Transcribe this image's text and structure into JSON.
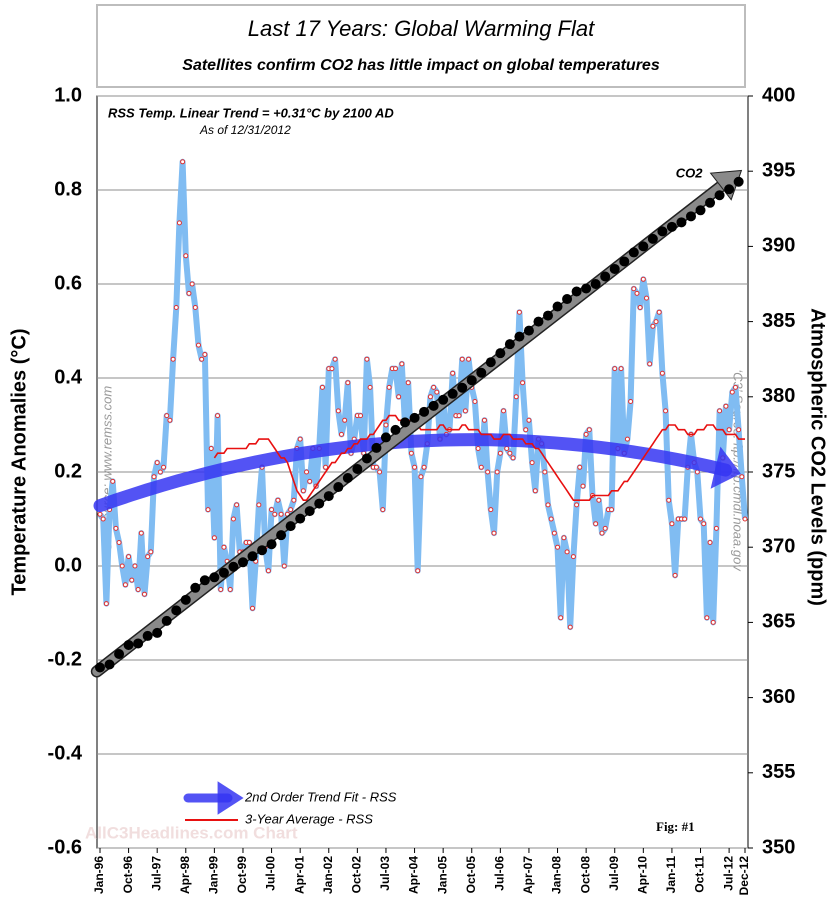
{
  "chart_data": {
    "type": "line",
    "title": "Last 17 Years: Global Warming Flat",
    "subtitle": "Satellites confirm CO2 has little impact on global temperatures",
    "ylabel": "Temperature Anomalies (°C)",
    "y2label": "Atmospheric CO2 Levels (ppm)",
    "note": "RSS Temp. Linear Trend = +0.31°C by 2100 AD",
    "as_of": "As of 12/31/2012",
    "source_left": "‘C3’ Source: www.remss.com",
    "source_right": "‘C3’ Source: ftp://ftp.cmdl.noaa.gov",
    "fig": "Fig: #1",
    "watermark": "AllC3Headlines.com Chart",
    "categories": [
      "Jan-96",
      null,
      null,
      null,
      null,
      null,
      null,
      null,
      null,
      "Oct-96",
      null,
      null,
      null,
      null,
      null,
      null,
      null,
      null,
      "Jul-97",
      null,
      null,
      null,
      null,
      null,
      null,
      null,
      null,
      "Apr-98",
      null,
      null,
      null,
      null,
      null,
      null,
      null,
      null,
      "Jan-99",
      null,
      null,
      null,
      null,
      null,
      null,
      null,
      null,
      "Oct-99",
      null,
      null,
      null,
      null,
      null,
      null,
      null,
      null,
      "Jul-00",
      null,
      null,
      null,
      null,
      null,
      null,
      null,
      null,
      "Apr-01",
      null,
      null,
      null,
      null,
      null,
      null,
      null,
      null,
      "Jan-02",
      null,
      null,
      null,
      null,
      null,
      null,
      null,
      null,
      "Oct-02",
      null,
      null,
      null,
      null,
      null,
      null,
      null,
      null,
      "Jul-03",
      null,
      null,
      null,
      null,
      null,
      null,
      null,
      null,
      "Apr-04",
      null,
      null,
      null,
      null,
      null,
      null,
      null,
      null,
      "Jan-05",
      null,
      null,
      null,
      null,
      null,
      null,
      null,
      null,
      "Oct-05",
      null,
      null,
      null,
      null,
      null,
      null,
      null,
      null,
      "Jul-06",
      null,
      null,
      null,
      null,
      null,
      null,
      null,
      null,
      "Apr-07",
      null,
      null,
      null,
      null,
      null,
      null,
      null,
      null,
      "Jan-08",
      null,
      null,
      null,
      null,
      null,
      null,
      null,
      null,
      "Oct-08",
      null,
      null,
      null,
      null,
      null,
      null,
      null,
      null,
      "Jul-09",
      null,
      null,
      null,
      null,
      null,
      null,
      null,
      null,
      "Apr-10",
      null,
      null,
      null,
      null,
      null,
      null,
      null,
      null,
      "Jan-11",
      null,
      null,
      null,
      null,
      null,
      null,
      null,
      null,
      "Oct-11",
      null,
      null,
      null,
      null,
      null,
      null,
      null,
      null,
      "Jul-12",
      null,
      null,
      null,
      null,
      "Dec-12"
    ],
    "series": [
      {
        "color": "#80bcf2",
        "marker_color": "#e03030",
        "values": [
          0.11,
          0.1,
          -0.08,
          0.12,
          0.18,
          0.08,
          0.05,
          0.0,
          -0.04,
          0.02,
          -0.03,
          0.0,
          -0.05,
          0.07,
          -0.06,
          0.02,
          0.03,
          0.19,
          0.22,
          0.2,
          0.21,
          0.32,
          0.31,
          0.44,
          0.55,
          0.73,
          0.86,
          0.66,
          0.58,
          0.6,
          0.55,
          0.47,
          0.44,
          0.45,
          0.12,
          0.25,
          0.06,
          0.32,
          -0.05,
          0.04,
          0.01,
          -0.05,
          0.1,
          0.13,
          0.03,
          0.03,
          0.05,
          0.05,
          -0.09,
          0.01,
          0.13,
          0.21,
          0.04,
          -0.01,
          0.12,
          0.11,
          0.14,
          0.11,
          0.0,
          0.11,
          0.12,
          0.14,
          0.25,
          0.27,
          0.16,
          0.2,
          0.18,
          0.25,
          0.17,
          0.25,
          0.38,
          0.21,
          0.42,
          0.42,
          0.44,
          0.33,
          0.28,
          0.31,
          0.39,
          0.24,
          0.27,
          0.32,
          0.32,
          0.24,
          0.44,
          0.38,
          0.21,
          0.21,
          0.2,
          0.12,
          0.3,
          0.38,
          0.42,
          0.42,
          0.36,
          0.43,
          0.3,
          0.39,
          0.24,
          0.21,
          -0.01,
          0.19,
          0.21,
          0.26,
          0.36,
          0.38,
          0.37,
          0.27,
          0.35,
          0.28,
          0.29,
          0.41,
          0.32,
          0.32,
          0.44,
          0.33,
          0.44,
          0.38,
          0.35,
          0.25,
          0.21,
          0.31,
          0.2,
          0.12,
          0.07,
          0.2,
          0.24,
          0.33,
          0.25,
          0.24,
          0.23,
          0.36,
          0.54,
          0.39,
          0.29,
          0.31,
          0.22,
          0.16,
          0.27,
          0.26,
          0.2,
          0.13,
          0.1,
          0.07,
          0.04,
          -0.11,
          0.06,
          0.03,
          -0.13,
          0.02,
          0.13,
          0.21,
          0.17,
          0.28,
          0.29,
          0.15,
          0.09,
          0.14,
          0.07,
          0.08,
          0.12,
          0.12,
          0.42,
          0.25,
          0.42,
          0.24,
          0.27,
          0.35,
          0.59,
          0.58,
          0.55,
          0.61,
          0.57,
          0.43,
          0.51,
          0.52,
          0.54,
          0.41,
          0.33,
          0.14,
          0.09,
          -0.02,
          0.1,
          0.1,
          0.1,
          0.21,
          0.28,
          0.22,
          0.2,
          0.1,
          0.09,
          -0.11,
          0.05,
          -0.12,
          0.08,
          0.33,
          0.23,
          0.34,
          0.29,
          0.37,
          0.38,
          0.29,
          0.19,
          0.1
        ]
      },
      {
        "name": "3-Year Average - RSS",
        "color": "#e81010",
        "values": [
          null,
          null,
          null,
          null,
          null,
          null,
          null,
          null,
          null,
          null,
          null,
          null,
          null,
          null,
          null,
          null,
          null,
          null,
          null,
          null,
          null,
          null,
          null,
          null,
          null,
          null,
          null,
          null,
          null,
          null,
          null,
          null,
          null,
          null,
          null,
          null,
          0.23,
          0.24,
          0.24,
          0.24,
          0.25,
          0.25,
          0.25,
          0.25,
          0.25,
          0.25,
          0.25,
          0.26,
          0.26,
          0.26,
          0.27,
          0.27,
          0.27,
          0.27,
          0.26,
          0.25,
          0.24,
          0.23,
          0.23,
          0.22,
          0.2,
          0.18,
          0.16,
          0.15,
          0.14,
          0.14,
          0.15,
          0.16,
          0.17,
          0.18,
          0.19,
          0.2,
          0.21,
          0.22,
          0.22,
          0.23,
          0.24,
          0.24,
          0.25,
          0.25,
          0.26,
          0.26,
          0.27,
          0.27,
          0.27,
          0.28,
          0.28,
          0.29,
          0.3,
          0.31,
          0.31,
          0.32,
          0.32,
          0.32,
          0.31,
          0.31,
          0.31,
          0.31,
          0.31,
          0.3,
          0.3,
          0.29,
          0.29,
          0.29,
          0.29,
          0.29,
          0.29,
          0.3,
          0.3,
          0.29,
          0.29,
          0.29,
          0.29,
          0.29,
          0.3,
          0.3,
          0.29,
          0.29,
          0.29,
          0.29,
          0.28,
          0.28,
          0.28,
          0.28,
          0.27,
          0.27,
          0.27,
          0.28,
          0.28,
          0.28,
          0.27,
          0.27,
          0.27,
          0.27,
          0.26,
          0.26,
          0.26,
          0.25,
          0.25,
          0.24,
          0.23,
          0.22,
          0.21,
          0.2,
          0.19,
          0.18,
          0.17,
          0.16,
          0.15,
          0.14,
          0.14,
          0.14,
          0.14,
          0.14,
          0.14,
          0.15,
          0.15,
          0.15,
          0.15,
          0.15,
          0.15,
          0.16,
          0.16,
          0.16,
          0.17,
          0.18,
          0.18,
          0.19,
          0.2,
          0.21,
          0.22,
          0.23,
          0.24,
          0.25,
          0.26,
          0.27,
          0.28,
          0.29,
          0.29,
          0.3,
          0.3,
          0.3,
          0.29,
          0.29,
          0.29,
          0.28,
          0.28,
          0.28,
          0.29,
          0.29,
          0.29,
          0.3,
          0.3,
          0.3,
          0.29,
          0.29,
          0.29,
          0.28,
          0.28,
          0.28,
          0.28,
          0.27,
          0.27,
          0.27
        ]
      },
      {
        "name": "CO2",
        "color": "#000000",
        "trend_color": "#8a8a8a",
        "axis": "y2",
        "values": [
          362.0,
          null,
          null,
          362.2,
          null,
          null,
          362.9,
          null,
          null,
          363.5,
          null,
          null,
          363.6,
          null,
          null,
          364.1,
          null,
          null,
          364.3,
          null,
          null,
          365.1,
          null,
          null,
          365.8,
          null,
          null,
          366.5,
          null,
          null,
          367.3,
          null,
          null,
          367.8,
          null,
          null,
          368.0,
          null,
          null,
          368.3,
          null,
          null,
          368.7,
          null,
          null,
          369.0,
          null,
          null,
          369.4,
          null,
          null,
          369.8,
          null,
          null,
          370.2,
          null,
          null,
          370.8,
          null,
          null,
          371.4,
          null,
          null,
          371.9,
          null,
          null,
          372.4,
          null,
          null,
          372.9,
          null,
          null,
          373.4,
          null,
          null,
          374.0,
          null,
          null,
          374.6,
          null,
          null,
          375.2,
          null,
          null,
          375.9,
          null,
          null,
          376.6,
          null,
          null,
          377.3,
          null,
          null,
          377.8,
          null,
          null,
          378.3,
          null,
          null,
          378.6,
          null,
          null,
          379.0,
          null,
          null,
          379.4,
          null,
          null,
          379.8,
          null,
          null,
          380.2,
          null,
          null,
          380.6,
          null,
          null,
          381.1,
          null,
          null,
          381.6,
          null,
          null,
          382.3,
          null,
          null,
          382.9,
          null,
          null,
          383.5,
          null,
          null,
          384.0,
          null,
          null,
          384.4,
          null,
          null,
          385.0,
          null,
          null,
          385.4,
          null,
          null,
          386.0,
          null,
          null,
          386.5,
          null,
          null,
          387.0,
          null,
          null,
          387.2,
          null,
          null,
          387.5,
          null,
          null,
          388.0,
          null,
          null,
          388.5,
          null,
          null,
          389.0,
          null,
          null,
          389.6,
          null,
          null,
          390.0,
          null,
          null,
          390.5,
          null,
          null,
          391.0,
          null,
          null,
          391.3,
          null,
          null,
          391.6,
          null,
          null,
          392.0,
          null,
          null,
          392.4,
          null,
          null,
          392.9,
          null,
          null,
          393.4,
          null,
          null,
          393.8,
          null,
          null,
          394.3,
          null,
          null
        ]
      }
    ],
    "trend_fit": {
      "name": "2nd Order Trend Fit - RSS",
      "color": "#3535f2"
    },
    "ylim": [
      -0.6,
      1.0
    ],
    "yticks": [
      {
        "value": 1.0,
        "label": "1.0"
      },
      0.8,
      0.6,
      0.4,
      0.2,
      {
        "value": 0.0,
        "label": "0.0"
      },
      -0.2,
      -0.4,
      -0.6
    ],
    "y2lim": [
      350,
      400
    ],
    "y2ticks": [
      400,
      395,
      390,
      385,
      380,
      375,
      370,
      365,
      360,
      355,
      350
    ],
    "grid": true
  }
}
